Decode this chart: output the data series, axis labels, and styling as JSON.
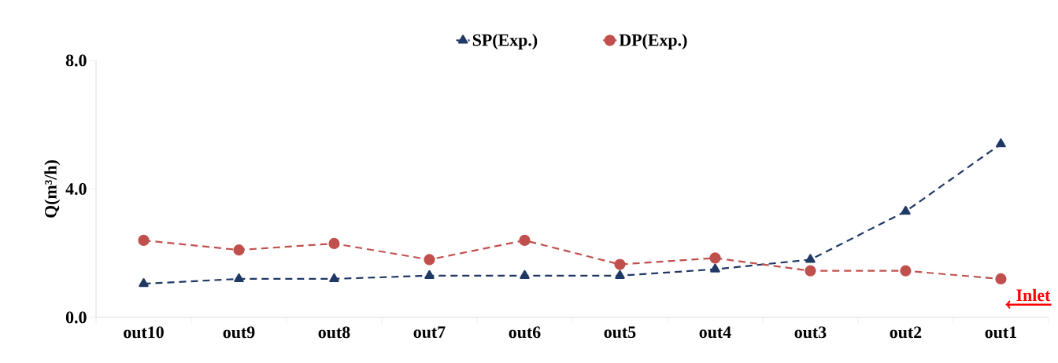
{
  "chart_data": {
    "type": "line",
    "ylabel": "Q(m³/h)",
    "categories": [
      "out10",
      "out9",
      "out8",
      "out7",
      "out6",
      "out5",
      "out4",
      "out3",
      "out2",
      "out1"
    ],
    "series": [
      {
        "name": "SP(Exp.)",
        "color": "#1f3864",
        "marker": "triangle",
        "values": [
          1.05,
          1.2,
          1.2,
          1.3,
          1.3,
          1.3,
          1.5,
          1.8,
          3.3,
          5.4
        ]
      },
      {
        "name": "DP(Exp.)",
        "color": "#c0504d",
        "marker": "circle",
        "values": [
          2.4,
          2.1,
          2.3,
          1.8,
          2.4,
          1.65,
          1.85,
          1.45,
          1.45,
          1.2
        ]
      }
    ],
    "ylim": [
      0,
      8
    ],
    "yticks": [
      {
        "value": 0,
        "label": "0.0"
      },
      {
        "value": 4,
        "label": "4.0"
      },
      {
        "value": 8,
        "label": "8.0"
      }
    ],
    "line_style": "dashed",
    "legend": "top",
    "grid": false,
    "annotations": [
      "Inlet"
    ]
  }
}
